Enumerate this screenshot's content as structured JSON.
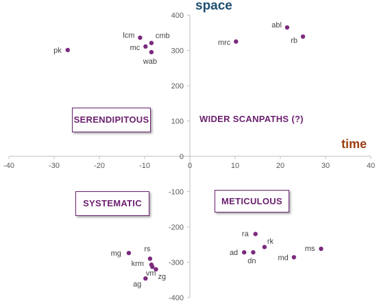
{
  "chart_data": {
    "type": "scatter",
    "xlabel": "time",
    "ylabel": "space",
    "xlim": [
      -40,
      40
    ],
    "ylim": [
      -400,
      400
    ],
    "x_ticks": [
      -40,
      -30,
      -20,
      -10,
      0,
      10,
      20,
      30,
      40
    ],
    "y_ticks": [
      400,
      300,
      200,
      100,
      0,
      -100,
      -200,
      -300,
      -400
    ],
    "grid": false,
    "quadrant_labels": [
      {
        "text": "SERENDIPITOUS",
        "boxed": true
      },
      {
        "text": "WIDER SCANPATHS (?)",
        "boxed": false
      },
      {
        "text": "SYSTEMATIC",
        "boxed": true
      },
      {
        "text": "METICULOUS",
        "boxed": true
      }
    ],
    "points": [
      {
        "label": "pk",
        "x": -27,
        "y": 301
      },
      {
        "label": "lcm",
        "x": -11,
        "y": 336
      },
      {
        "label": "cmb",
        "x": -8.5,
        "y": 321
      },
      {
        "label": "mc",
        "x": -9.8,
        "y": 311
      },
      {
        "label": "wab",
        "x": -8.5,
        "y": 295
      },
      {
        "label": "abl",
        "x": 21.5,
        "y": 365
      },
      {
        "label": "rb",
        "x": 25,
        "y": 339
      },
      {
        "label": "mrc",
        "x": 10.2,
        "y": 325
      },
      {
        "label": "mg",
        "x": -13.5,
        "y": -274
      },
      {
        "label": "rs",
        "x": -8.8,
        "y": -290
      },
      {
        "label": "krm",
        "x": -8.5,
        "y": -307
      },
      {
        "label": "zg",
        "x": -7.5,
        "y": -320
      },
      {
        "label": "vm",
        "x": -8.3,
        "y": -313
      },
      {
        "label": "ag",
        "x": -9.8,
        "y": -346
      },
      {
        "label": "ra",
        "x": 14.5,
        "y": -220
      },
      {
        "label": "rk",
        "x": 16.5,
        "y": -257
      },
      {
        "label": "ad",
        "x": 12,
        "y": -272
      },
      {
        "label": "dn",
        "x": 14,
        "y": -272
      },
      {
        "label": "ms",
        "x": 29,
        "y": -262
      },
      {
        "label": "md",
        "x": 23,
        "y": -286
      }
    ],
    "colors": {
      "point": "#7b2a7e",
      "axis": "#bfbfbf",
      "tick_text": "#595959",
      "label": "#404040",
      "quadrant_text": "#6b1e6e",
      "space_title": "#1d4e6f",
      "time_title": "#9b3d12"
    }
  }
}
